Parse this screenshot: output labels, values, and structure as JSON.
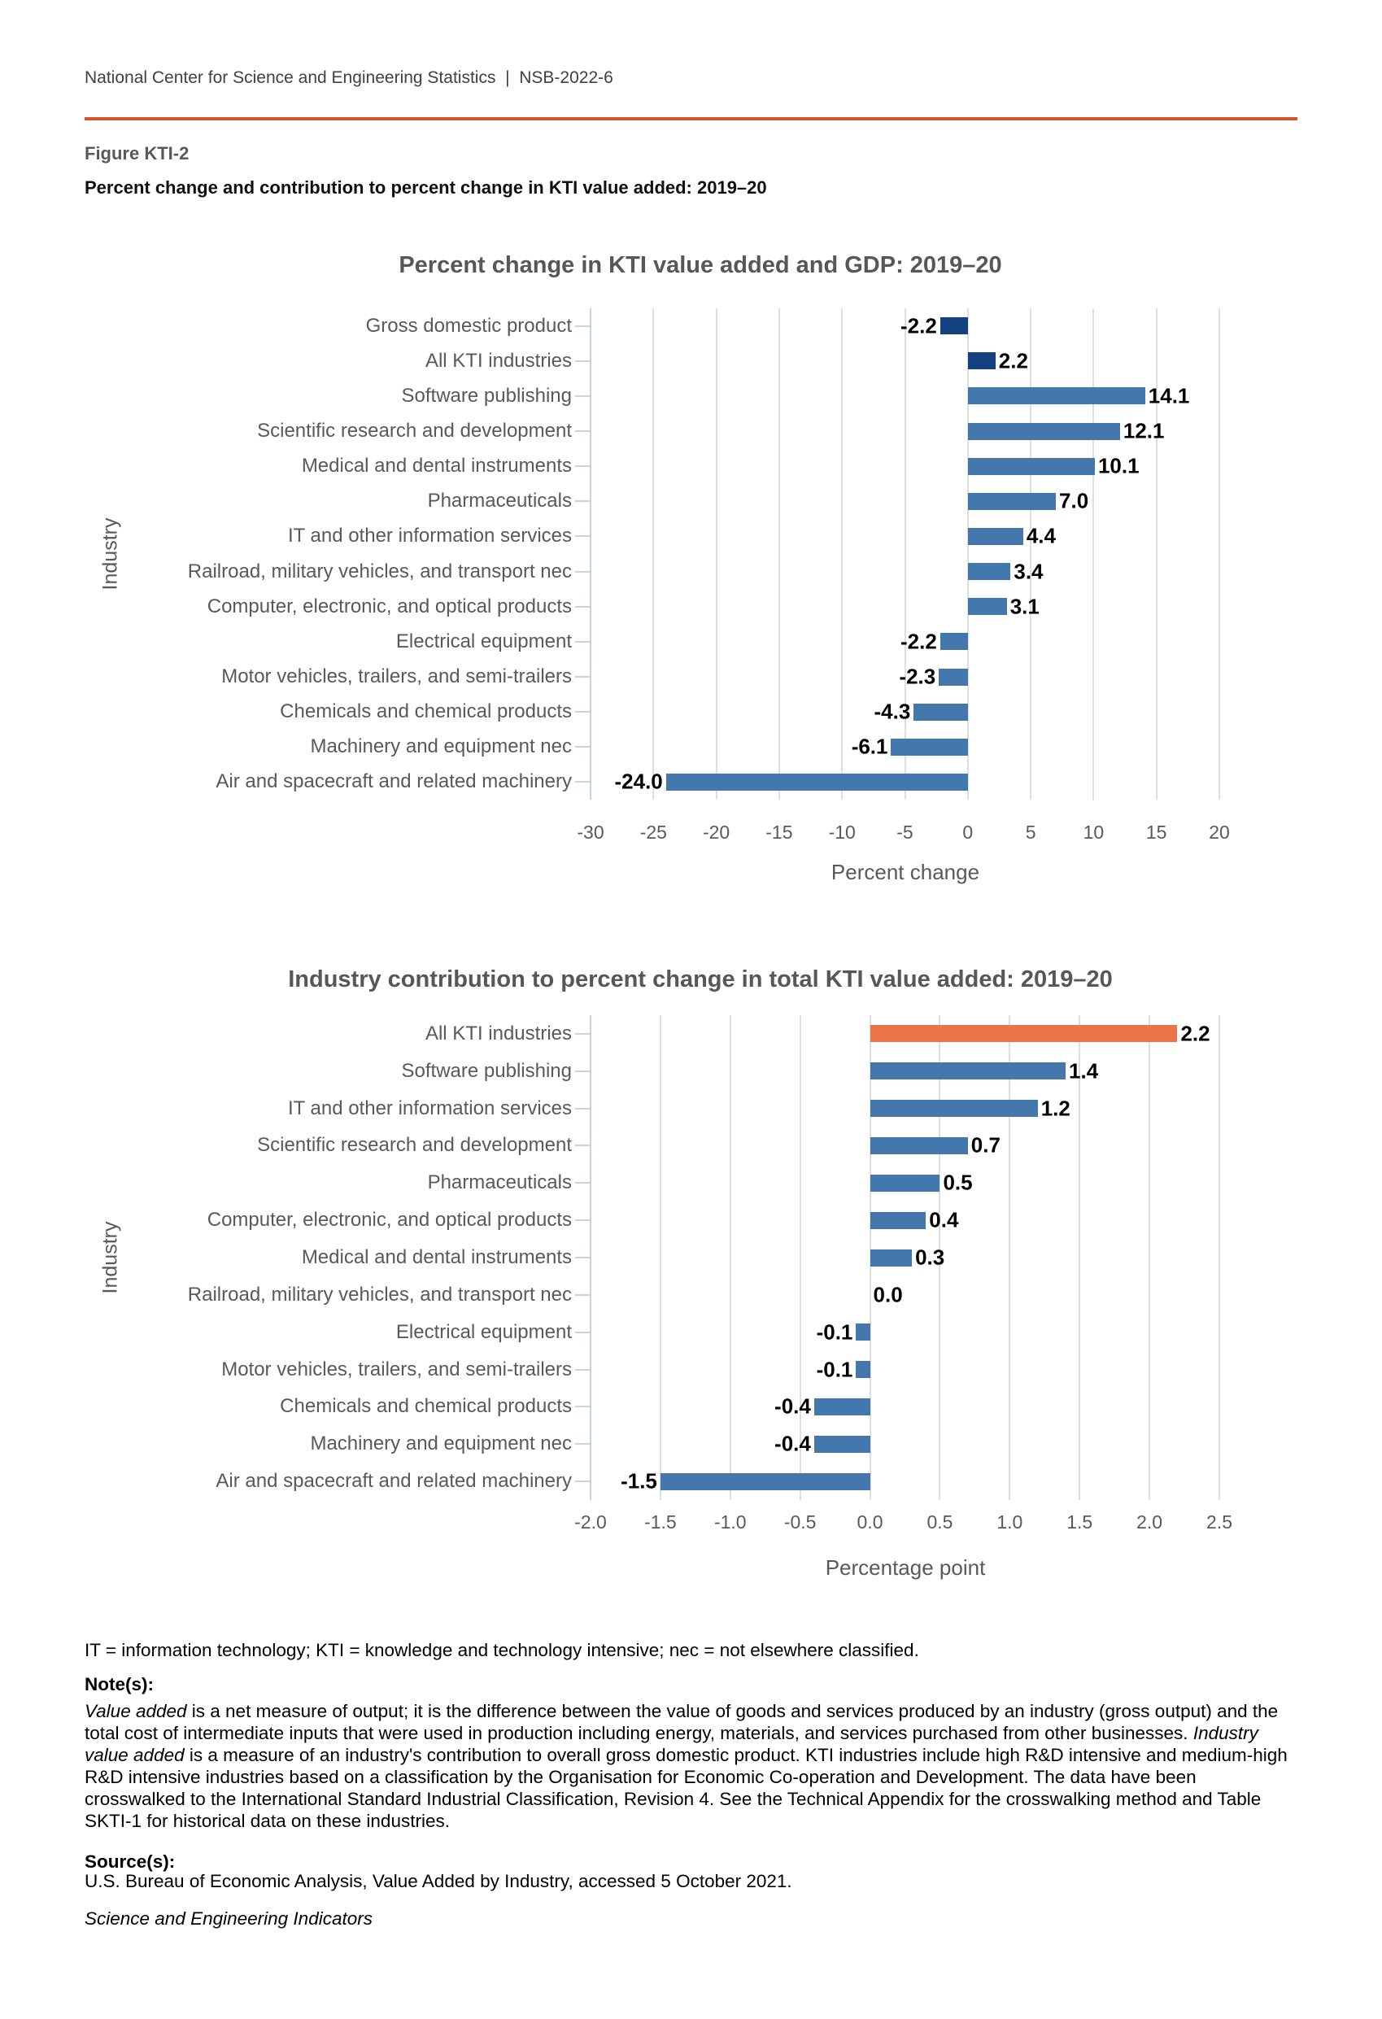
{
  "page": {
    "header": "National Center for Science and Engineering Statistics  |  NSB-2022-6",
    "figure_label": "Figure KTI-2",
    "title": "Percent change and contribution to percent change in KTI value added: 2019–20",
    "accent_color": "#d8542b"
  },
  "chart_data": [
    {
      "type": "bar",
      "orientation": "horizontal",
      "title": "Percent change in KTI value added and GDP: 2019–20",
      "xlabel": "Percent change",
      "ylabel": "Industry",
      "xlim": [
        -30,
        20
      ],
      "xtick_step": 5,
      "xtick_labels": [
        "-30",
        "-25",
        "-20",
        "-15",
        "-10",
        "-5",
        "0",
        "5",
        "10",
        "15",
        "20"
      ],
      "grid": true,
      "categories": [
        "Gross domestic product",
        "All KTI industries",
        "Software publishing",
        "Scientific research and development",
        "Medical and dental instruments",
        "Pharmaceuticals",
        "IT and other information services",
        "Railroad, military vehicles, and transport nec",
        "Computer, electronic, and optical products",
        "Electrical equipment",
        "Motor vehicles, trailers, and semi-trailers",
        "Chemicals and chemical products",
        "Machinery and equipment nec",
        "Air and spacecraft and related machinery"
      ],
      "values": [
        -2.2,
        2.2,
        14.1,
        12.1,
        10.1,
        7.0,
        4.4,
        3.4,
        3.1,
        -2.2,
        -2.3,
        -4.3,
        -6.1,
        -24.0
      ],
      "value_labels": [
        "-2.2",
        "2.2",
        "14.1",
        "12.1",
        "10.1",
        "7.0",
        "4.4",
        "3.4",
        "3.1",
        "-2.2",
        "-2.3",
        "-4.3",
        "-6.1",
        "-24.0"
      ],
      "bar_colors": [
        "#14417f",
        "#14417f",
        "#4478ac",
        "#4478ac",
        "#4478ac",
        "#4478ac",
        "#4478ac",
        "#4478ac",
        "#4478ac",
        "#4478ac",
        "#4478ac",
        "#4478ac",
        "#4478ac",
        "#4478ac"
      ]
    },
    {
      "type": "bar",
      "orientation": "horizontal",
      "title": "Industry contribution to percent change in total KTI value added: 2019–20",
      "xlabel": "Percentage point",
      "ylabel": "Industry",
      "xlim": [
        -2.0,
        2.5
      ],
      "xtick_step": 0.5,
      "xtick_labels": [
        "-2.0",
        "-1.5",
        "-1.0",
        "-0.5",
        "0.0",
        "0.5",
        "1.0",
        "1.5",
        "2.0",
        "2.5"
      ],
      "grid": true,
      "categories": [
        "All KTI industries",
        "Software publishing",
        "IT and other information services",
        "Scientific research and development",
        "Pharmaceuticals",
        "Computer, electronic, and optical products",
        "Medical and dental instruments",
        "Railroad, military vehicles, and transport nec",
        "Electrical equipment",
        "Motor vehicles, trailers, and semi-trailers",
        "Chemicals and chemical products",
        "Machinery and equipment nec",
        "Air and spacecraft and related machinery"
      ],
      "values": [
        2.2,
        1.4,
        1.2,
        0.7,
        0.5,
        0.4,
        0.3,
        0.0,
        -0.1,
        -0.1,
        -0.4,
        -0.4,
        -1.5
      ],
      "value_labels": [
        "2.2",
        "1.4",
        "1.2",
        "0.7",
        "0.5",
        "0.4",
        "0.3",
        "0.0",
        "-0.1",
        "-0.1",
        "-0.4",
        "-0.4",
        "-1.5"
      ],
      "bar_colors": [
        "#ed7348",
        "#4478ac",
        "#4478ac",
        "#4478ac",
        "#4478ac",
        "#4478ac",
        "#4478ac",
        "#4478ac",
        "#4478ac",
        "#4478ac",
        "#4478ac",
        "#4478ac",
        "#4478ac"
      ]
    }
  ],
  "footnotes": {
    "abbrev": "IT = information technology; KTI = knowledge and technology intensive; nec = not elsewhere classified.",
    "notes_label": "Note(s):",
    "note_segments": [
      {
        "text": "Value added",
        "italic": true
      },
      {
        "text": " is a net measure of output; it is the difference between the value of goods and services produced by an industry (gross output) and the total cost of intermediate inputs that were used in production including energy, materials, and services purchased from other businesses. ",
        "italic": false
      },
      {
        "text": "Industry value added",
        "italic": true
      },
      {
        "text": " is a measure of an industry's contribution to overall gross domestic product. KTI industries include high R&D intensive and medium-high R&D intensive industries based on a classification by the Organisation for Economic Co-operation and Development. The data have been crosswalked to the International Standard Industrial Classification, Revision 4. See the Technical Appendix for the crosswalking method and Table SKTI-1 for historical data on these industries.",
        "italic": false
      }
    ],
    "sources_label": "Source(s):",
    "source_text": "U.S. Bureau of Economic Analysis, Value Added by Industry, accessed 5 October 2021.",
    "journal": "Science and Engineering Indicators"
  }
}
